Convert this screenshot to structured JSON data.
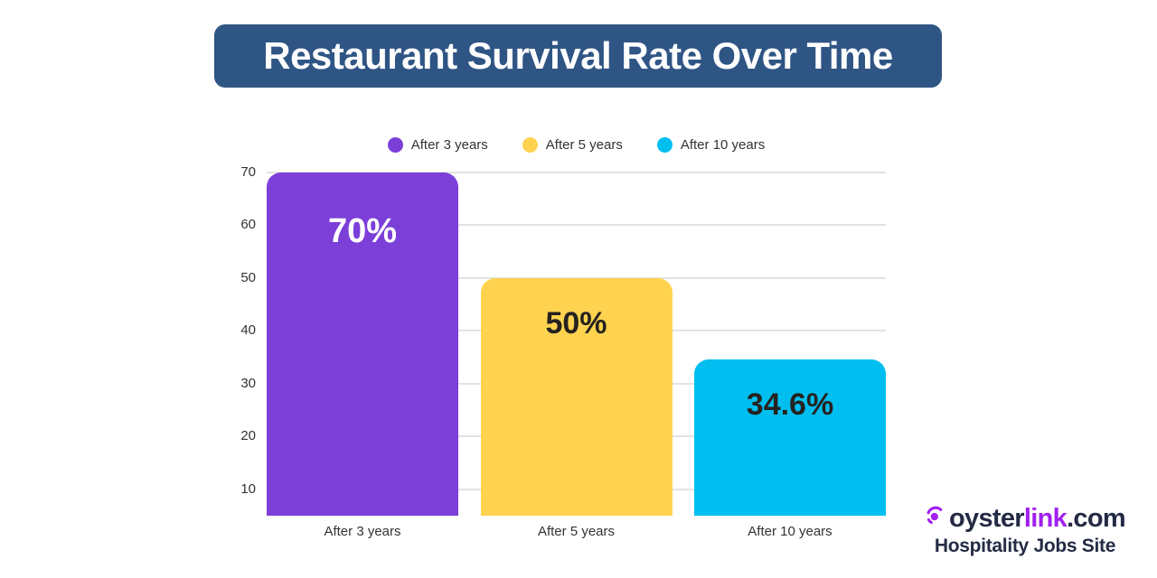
{
  "header": {
    "title": "Restaurant Survival Rate Over Time",
    "banner_bg_color": "#2F5585",
    "banner_text_color": "#FFFFFF"
  },
  "chart_data": {
    "type": "bar",
    "title": "Restaurant Survival Rate Over Time",
    "categories": [
      "After 3 years",
      "After 5 years",
      "After 10 years"
    ],
    "values": [
      70,
      50,
      34.6
    ],
    "value_labels": [
      "70%",
      "50%",
      "34.6%"
    ],
    "bar_colors": [
      "#7C3FD8",
      "#FFD34F",
      "#00BFF0"
    ],
    "value_label_colors": [
      "#FFFFFF",
      "#262220",
      "#262220"
    ],
    "legend": [
      {
        "label": "After 3 years",
        "color": "#7C3FD8"
      },
      {
        "label": "After 5 years",
        "color": "#FFD34F"
      },
      {
        "label": "After 10 years",
        "color": "#00BFF0"
      }
    ],
    "legend_position": "top",
    "y_ticks": [
      10,
      20,
      30,
      40,
      50,
      60,
      70
    ],
    "y_axis_min": 5,
    "y_axis_max": 70,
    "grid": true,
    "gridline_color": "#E3E3E3",
    "axis_text_color": "#333333",
    "xlabel": "",
    "ylabel": ""
  },
  "branding": {
    "logo_oyster": "oyster",
    "logo_link": "link",
    "logo_com": ".com",
    "tagline": "Hospitality Jobs Site",
    "navy_color": "#242B44",
    "purple_color": "#A21FF0",
    "icon": "oyster-pearl-icon"
  }
}
